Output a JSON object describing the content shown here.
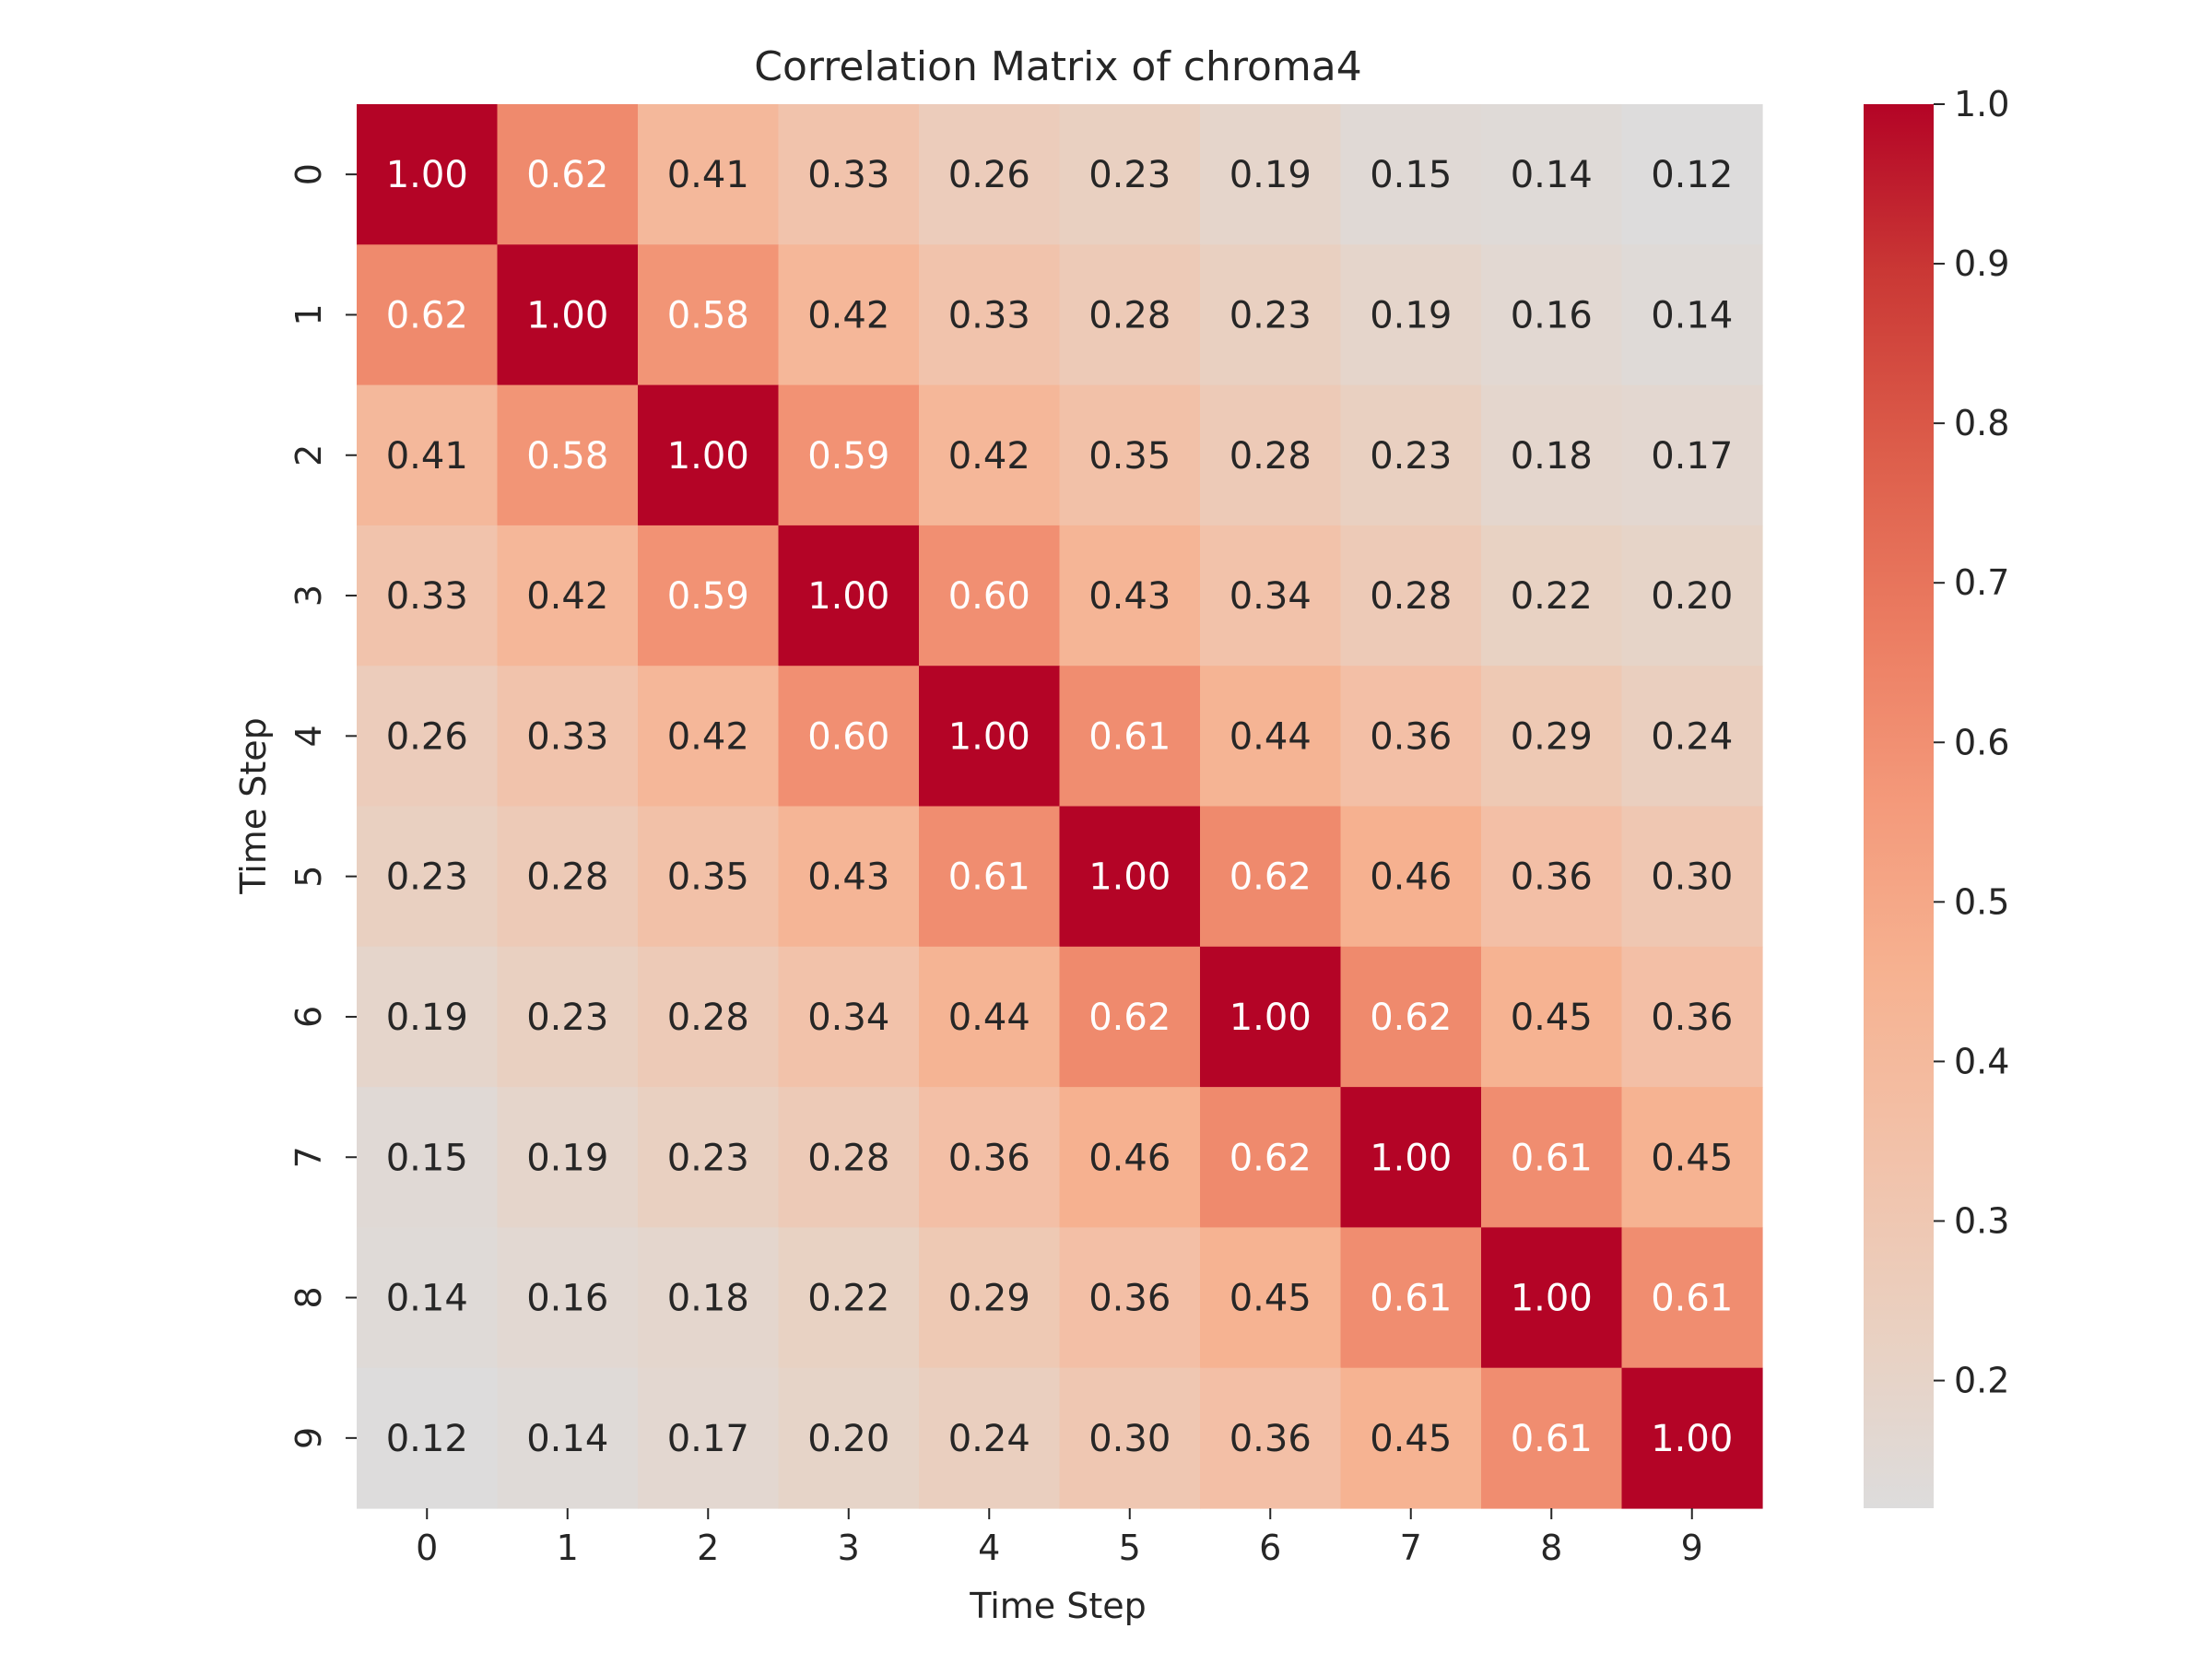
{
  "chart_data": {
    "type": "heatmap",
    "title": "Correlation Matrix of chroma4",
    "xlabel": "Time Step",
    "ylabel": "Time Step",
    "x_categories": [
      "0",
      "1",
      "2",
      "3",
      "4",
      "5",
      "6",
      "7",
      "8",
      "9"
    ],
    "y_categories": [
      "0",
      "1",
      "2",
      "3",
      "4",
      "5",
      "6",
      "7",
      "8",
      "9"
    ],
    "values": [
      [
        1.0,
        0.62,
        0.41,
        0.33,
        0.26,
        0.23,
        0.19,
        0.15,
        0.14,
        0.12
      ],
      [
        0.62,
        1.0,
        0.58,
        0.42,
        0.33,
        0.28,
        0.23,
        0.19,
        0.16,
        0.14
      ],
      [
        0.41,
        0.58,
        1.0,
        0.59,
        0.42,
        0.35,
        0.28,
        0.23,
        0.18,
        0.17
      ],
      [
        0.33,
        0.42,
        0.59,
        1.0,
        0.6,
        0.43,
        0.34,
        0.28,
        0.22,
        0.2
      ],
      [
        0.26,
        0.33,
        0.42,
        0.6,
        1.0,
        0.61,
        0.44,
        0.36,
        0.29,
        0.24
      ],
      [
        0.23,
        0.28,
        0.35,
        0.43,
        0.61,
        1.0,
        0.62,
        0.46,
        0.36,
        0.3
      ],
      [
        0.19,
        0.23,
        0.28,
        0.34,
        0.44,
        0.62,
        1.0,
        0.62,
        0.45,
        0.36
      ],
      [
        0.15,
        0.19,
        0.23,
        0.28,
        0.36,
        0.46,
        0.62,
        1.0,
        0.61,
        0.45
      ],
      [
        0.14,
        0.16,
        0.18,
        0.22,
        0.29,
        0.36,
        0.45,
        0.61,
        1.0,
        0.61
      ],
      [
        0.12,
        0.14,
        0.17,
        0.2,
        0.24,
        0.3,
        0.36,
        0.45,
        0.61,
        1.0
      ]
    ],
    "value_format": "2 decimals",
    "colorbar": {
      "range": [
        0.12,
        1.0
      ],
      "ticks": [
        "0.2",
        "0.3",
        "0.4",
        "0.5",
        "0.6",
        "0.7",
        "0.8",
        "0.9",
        "1.0"
      ],
      "colormap": "coolwarm (upper half)",
      "color_low": "#dddcdc",
      "color_high": "#b40426"
    },
    "grid": false
  }
}
